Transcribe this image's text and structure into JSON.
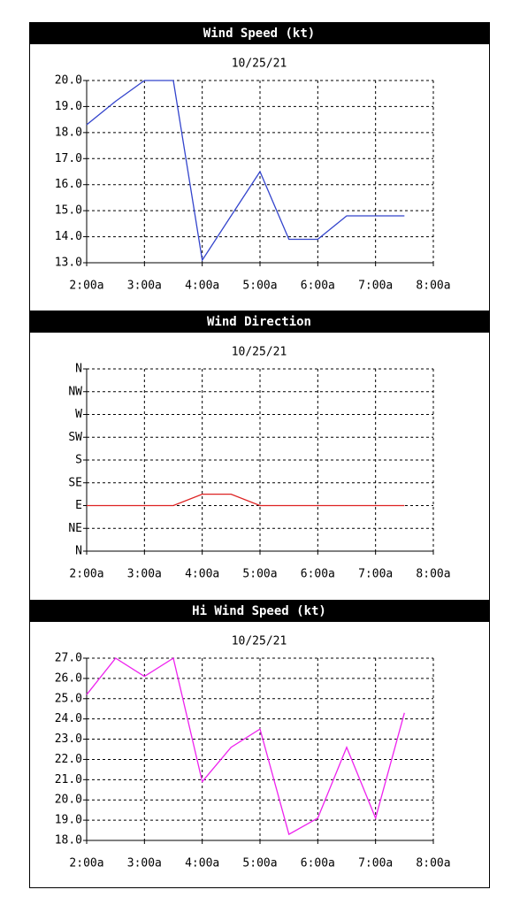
{
  "chart_data": [
    {
      "type": "line",
      "title": "Wind Speed (kt)",
      "subtitle": "10/25/21",
      "x": [
        2,
        2.5,
        3,
        3.5,
        4,
        4.5,
        5,
        5.5,
        6,
        6.5,
        7,
        7.5
      ],
      "series": [
        {
          "color": "#3344cc",
          "values": [
            18.3,
            19.2,
            20.0,
            20.0,
            13.1,
            14.8,
            16.5,
            13.9,
            13.9,
            14.8,
            14.8,
            14.8
          ]
        }
      ],
      "xlim": [
        2,
        8
      ],
      "xticks": [
        {
          "value": 2,
          "label": "2:00a"
        },
        {
          "value": 3,
          "label": "3:00a"
        },
        {
          "value": 4,
          "label": "4:00a"
        },
        {
          "value": 5,
          "label": "5:00a"
        },
        {
          "value": 6,
          "label": "6:00a"
        },
        {
          "value": 7,
          "label": "7:00a"
        },
        {
          "value": 8,
          "label": "8:00a"
        }
      ],
      "ylim": [
        13,
        20
      ],
      "yticks": [
        {
          "value": 13,
          "label": "13.0"
        },
        {
          "value": 14,
          "label": "14.0"
        },
        {
          "value": 15,
          "label": "15.0"
        },
        {
          "value": 16,
          "label": "16.0"
        },
        {
          "value": 17,
          "label": "17.0"
        },
        {
          "value": 18,
          "label": "18.0"
        },
        {
          "value": 19,
          "label": "19.0"
        },
        {
          "value": 20,
          "label": "20.0"
        }
      ],
      "grid": true
    },
    {
      "type": "line",
      "title": "Wind Direction",
      "subtitle": "10/25/21",
      "x": [
        2,
        2.5,
        3,
        3.5,
        4,
        4.5,
        5,
        5.5,
        6,
        6.5,
        7,
        7.5
      ],
      "series": [
        {
          "color": "#dd2222",
          "values": [
            90,
            90,
            90,
            90,
            112.5,
            112.5,
            90,
            90,
            90,
            90,
            90,
            90
          ]
        }
      ],
      "xlim": [
        2,
        8
      ],
      "xticks": [
        {
          "value": 2,
          "label": "2:00a"
        },
        {
          "value": 3,
          "label": "3:00a"
        },
        {
          "value": 4,
          "label": "4:00a"
        },
        {
          "value": 5,
          "label": "5:00a"
        },
        {
          "value": 6,
          "label": "6:00a"
        },
        {
          "value": 7,
          "label": "7:00a"
        },
        {
          "value": 8,
          "label": "8:00a"
        }
      ],
      "ylim": [
        0,
        360
      ],
      "yticks": [
        {
          "value": 0,
          "label": "N"
        },
        {
          "value": 45,
          "label": "NE"
        },
        {
          "value": 90,
          "label": "E"
        },
        {
          "value": 135,
          "label": "SE"
        },
        {
          "value": 180,
          "label": "S"
        },
        {
          "value": 225,
          "label": "SW"
        },
        {
          "value": 270,
          "label": "W"
        },
        {
          "value": 315,
          "label": "NW"
        },
        {
          "value": 360,
          "label": "N"
        }
      ],
      "grid": true
    },
    {
      "type": "line",
      "title": "Hi Wind Speed (kt)",
      "subtitle": "10/25/21",
      "x": [
        2,
        2.5,
        3,
        3.5,
        4,
        4.5,
        5,
        5.5,
        6,
        6.5,
        7,
        7.5
      ],
      "series": [
        {
          "color": "#ee22ee",
          "values": [
            25.2,
            27.0,
            26.1,
            27.0,
            20.9,
            22.6,
            23.5,
            18.3,
            19.1,
            22.6,
            19.1,
            24.3
          ]
        }
      ],
      "xlim": [
        2,
        8
      ],
      "xticks": [
        {
          "value": 2,
          "label": "2:00a"
        },
        {
          "value": 3,
          "label": "3:00a"
        },
        {
          "value": 4,
          "label": "4:00a"
        },
        {
          "value": 5,
          "label": "5:00a"
        },
        {
          "value": 6,
          "label": "6:00a"
        },
        {
          "value": 7,
          "label": "7:00a"
        },
        {
          "value": 8,
          "label": "8:00a"
        }
      ],
      "ylim": [
        18,
        27
      ],
      "yticks": [
        {
          "value": 18,
          "label": "18.0"
        },
        {
          "value": 19,
          "label": "19.0"
        },
        {
          "value": 20,
          "label": "20.0"
        },
        {
          "value": 21,
          "label": "21.0"
        },
        {
          "value": 22,
          "label": "22.0"
        },
        {
          "value": 23,
          "label": "23.0"
        },
        {
          "value": 24,
          "label": "24.0"
        },
        {
          "value": 25,
          "label": "25.0"
        },
        {
          "value": 26,
          "label": "26.0"
        },
        {
          "value": 27,
          "label": "27.0"
        }
      ],
      "grid": true
    }
  ]
}
